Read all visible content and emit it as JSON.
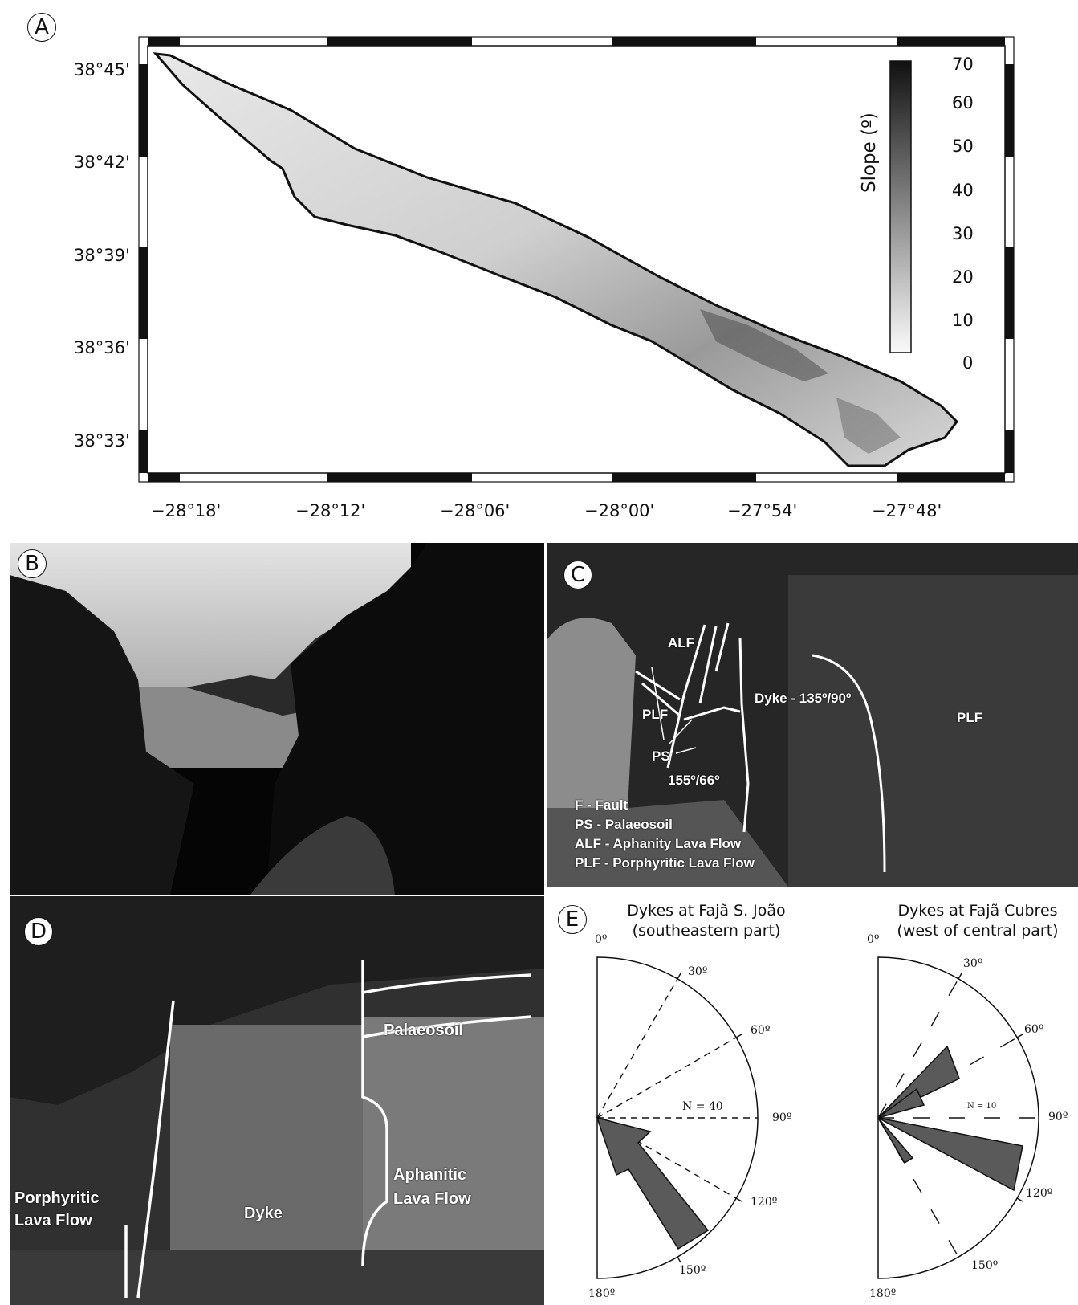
{
  "panel_a": {
    "letter": "A",
    "y_ticks": [
      "38°45'",
      "38°42'",
      "38°39'",
      "38°36'",
      "38°33'"
    ],
    "x_ticks": [
      "−28°18'",
      "−28°12'",
      "−28°06'",
      "−28°00'",
      "−27°54'",
      "−27°48'"
    ],
    "colorbar_label": "Slope (º)",
    "colorbar_ticks": [
      "70",
      "60",
      "50",
      "40",
      "30",
      "20",
      "10",
      "0"
    ]
  },
  "panel_b": {
    "letter": "B"
  },
  "panel_c": {
    "letter": "C",
    "labels": {
      "alf": "ALF",
      "plf_left": "PLF",
      "plf_right": "PLF",
      "ps": "PS",
      "dyke": "Dyke - 135º/90º",
      "fault_orient": "155º/66º"
    },
    "legend": [
      "F - Fault",
      "PS - Palaeosoil",
      "ALF - Aphanity Lava Flow",
      "PLF - Porphyritic Lava Flow"
    ]
  },
  "panel_d": {
    "letter": "D",
    "labels": {
      "palaeosoil": "Palaeosoil",
      "porphyritic_1": "Porphyritic",
      "porphyritic_2": "Lava Flow",
      "dyke": "Dyke",
      "aphanitic_1": "Aphanitic",
      "aphanitic_2": "Lava Flow"
    }
  },
  "panel_e": {
    "letter": "E",
    "rose_left": {
      "title_1": "Dykes at Fajã S. João",
      "title_2": "(southeastern part)",
      "n_label": "N = 40",
      "degrees": [
        "0º",
        "30º",
        "60º",
        "90º",
        "120º",
        "150º",
        "180º"
      ]
    },
    "rose_right": {
      "title_1": "Dykes at Fajã Cubres",
      "title_2": "(west of central part)",
      "n_label": "N = 10",
      "degrees": [
        "0º",
        "30º",
        "60º",
        "90º",
        "120º",
        "150º",
        "180º"
      ]
    }
  }
}
